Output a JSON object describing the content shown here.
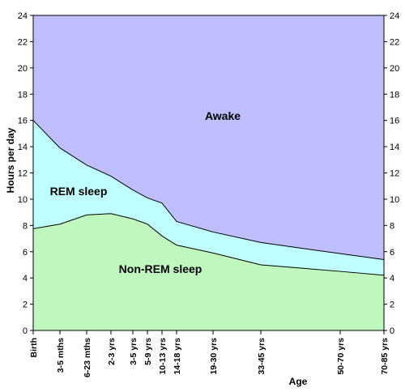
{
  "chart_data": {
    "type": "area",
    "title": "",
    "xlabel": "Age",
    "ylabel": "Hours per day",
    "ylim": [
      0,
      24
    ],
    "yticks": [
      0,
      2,
      4,
      6,
      8,
      10,
      12,
      14,
      16,
      18,
      20,
      22,
      24
    ],
    "grid": false,
    "secondary_y_axis": true,
    "categories": [
      "Birth",
      "3-5 mths",
      "6-23 mths",
      "2-3 yrs",
      "3-5 yrs",
      "5-9 yrs",
      "10-13 yrs",
      "14-18 yrs",
      "19-30 yrs",
      "33-45 yrs",
      "50-70 yrs",
      "70-85 yrs"
    ],
    "x_ticks_hours_since_birth_scale_note": null,
    "stack": [
      {
        "name": "Non-REM sleep",
        "color": "#bff7bf",
        "upper": [
          7.75,
          8.1,
          8.8,
          8.9,
          8.5,
          8.1,
          7.2,
          6.5,
          5.9,
          5.0,
          4.5,
          4.2
        ]
      },
      {
        "name": "REM sleep",
        "color": "#bfffff",
        "upper": [
          16.0,
          13.9,
          12.6,
          11.75,
          10.7,
          10.1,
          9.7,
          8.3,
          7.5,
          6.7,
          5.85,
          5.4
        ]
      },
      {
        "name": "Awake",
        "color": "#bfbfff",
        "upper": [
          24,
          24,
          24,
          24,
          24,
          24,
          24,
          24,
          24,
          24,
          24,
          24
        ]
      }
    ]
  }
}
